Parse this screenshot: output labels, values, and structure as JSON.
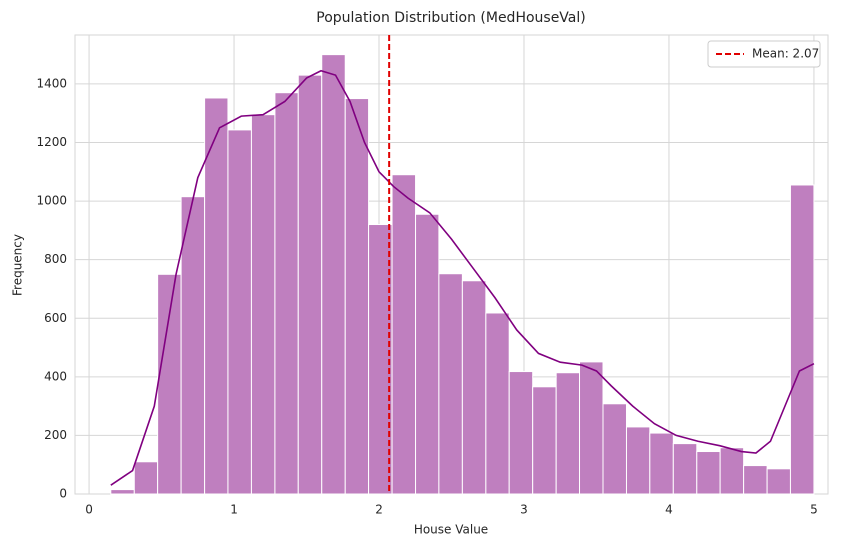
{
  "chart_data": {
    "type": "histogram",
    "title": "Population Distribution (MedHouseVal)",
    "xlabel": "House Value",
    "ylabel": "Frequency",
    "bins": [
      0.15,
      0.312,
      0.473,
      0.635,
      0.797,
      0.958,
      1.12,
      1.282,
      1.443,
      1.605,
      1.767,
      1.928,
      2.09,
      2.252,
      2.413,
      2.575,
      2.737,
      2.898,
      3.06,
      3.222,
      3.383,
      3.545,
      3.707,
      3.868,
      4.03,
      4.192,
      4.353,
      4.515,
      4.677,
      4.838,
      5.0
    ],
    "counts": [
      15,
      110,
      750,
      1015,
      1352,
      1243,
      1295,
      1370,
      1430,
      1500,
      1350,
      920,
      1090,
      955,
      752,
      728,
      618,
      418,
      366,
      414,
      451,
      308,
      229,
      208,
      172,
      145,
      158,
      97,
      86,
      1055
    ],
    "color": "#bf7fbf",
    "kde": {
      "color": "#800080",
      "x": [
        0.15,
        0.3,
        0.45,
        0.6,
        0.75,
        0.9,
        1.05,
        1.2,
        1.35,
        1.5,
        1.6,
        1.7,
        1.8,
        1.9,
        2.0,
        2.1,
        2.2,
        2.35,
        2.5,
        2.65,
        2.8,
        2.95,
        3.1,
        3.25,
        3.4,
        3.5,
        3.6,
        3.75,
        3.9,
        4.05,
        4.2,
        4.35,
        4.5,
        4.6,
        4.7,
        4.8,
        4.9,
        5.0
      ],
      "y": [
        30,
        80,
        300,
        750,
        1080,
        1250,
        1290,
        1295,
        1340,
        1420,
        1445,
        1430,
        1340,
        1200,
        1100,
        1050,
        1010,
        960,
        870,
        770,
        670,
        560,
        480,
        450,
        440,
        420,
        370,
        300,
        240,
        200,
        180,
        165,
        145,
        140,
        180,
        300,
        420,
        445
      ]
    },
    "mean": {
      "value": 2.07,
      "label": "Mean: 2.07",
      "color": "#e00000"
    },
    "xlim": [
      -0.097,
      5.097
    ],
    "ylim": [
      0,
      1567
    ],
    "xticks": [
      0,
      1,
      2,
      3,
      4,
      5
    ],
    "yticks": [
      0,
      200,
      400,
      600,
      800,
      1000,
      1200,
      1400
    ],
    "grid": true,
    "legend": "upper right"
  }
}
